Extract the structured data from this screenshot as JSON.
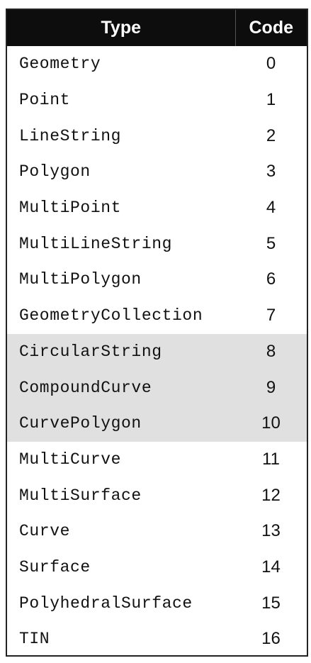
{
  "table": {
    "headers": {
      "type": "Type",
      "code": "Code"
    },
    "rows": [
      {
        "type": "Geometry",
        "code": "0",
        "highlighted": false
      },
      {
        "type": "Point",
        "code": "1",
        "highlighted": false
      },
      {
        "type": "LineString",
        "code": "2",
        "highlighted": false
      },
      {
        "type": "Polygon",
        "code": "3",
        "highlighted": false
      },
      {
        "type": "MultiPoint",
        "code": "4",
        "highlighted": false
      },
      {
        "type": "MultiLineString",
        "code": "5",
        "highlighted": false
      },
      {
        "type": "MultiPolygon",
        "code": "6",
        "highlighted": false
      },
      {
        "type": "GeometryCollection",
        "code": "7",
        "highlighted": false
      },
      {
        "type": "CircularString",
        "code": "8",
        "highlighted": true
      },
      {
        "type": "CompoundCurve",
        "code": "9",
        "highlighted": true
      },
      {
        "type": "CurvePolygon",
        "code": "10",
        "highlighted": true
      },
      {
        "type": "MultiCurve",
        "code": "11",
        "highlighted": false
      },
      {
        "type": "MultiSurface",
        "code": "12",
        "highlighted": false
      },
      {
        "type": "Curve",
        "code": "13",
        "highlighted": false
      },
      {
        "type": "Surface",
        "code": "14",
        "highlighted": false
      },
      {
        "type": "PolyhedralSurface",
        "code": "15",
        "highlighted": false
      },
      {
        "type": "TIN",
        "code": "16",
        "highlighted": false
      }
    ]
  },
  "colors": {
    "header_background": "#0d0d0d",
    "header_text": "#ffffff",
    "highlight_background": "#e0e0e0"
  }
}
